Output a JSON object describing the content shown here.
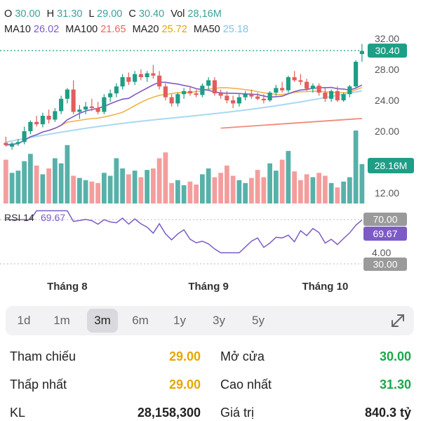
{
  "ohlc": {
    "o_label": "O",
    "o": "30.00",
    "h_label": "H",
    "h": "31.30",
    "l_label": "L",
    "l": "29.00",
    "c_label": "C",
    "c": "30.40",
    "vol_label": "Vol",
    "vol": "28,16M"
  },
  "ma": {
    "ma10_label": "MA10",
    "ma10": "26.02",
    "ma100_label": "MA100",
    "ma100": "21.65",
    "ma20_label": "MA20",
    "ma20": "25.72",
    "ma50_label": "MA50",
    "ma50": "25.18"
  },
  "colors": {
    "up": "#3aa39a",
    "down": "#f28c8c",
    "up_solid": "#1e9e86",
    "down_solid": "#e35d5d",
    "ma10": "#7d5bc6",
    "ma20": "#f0b44c",
    "ma50": "#a9d8f2",
    "ma100": "#f08a7a",
    "rsi": "#7d5bc6",
    "yellow": "#e6a700",
    "green": "#1aa84a"
  },
  "badges": {
    "price": "30.40",
    "volume": "28.16M",
    "rsi_upper": "70.00",
    "rsi_value": "69.67",
    "rsi_lower": "30.00"
  },
  "rsi": {
    "label": "RSI 14",
    "value": "69.67"
  },
  "tabs": [
    "1d",
    "1m",
    "3m",
    "6m",
    "1y",
    "3y",
    "5y"
  ],
  "active_tab": "3m",
  "stats": {
    "ref_label": "Tham chiếu",
    "ref_value": "29.00",
    "open_label": "Mở cửa",
    "open_value": "30.00",
    "low_label": "Thấp nhất",
    "low_value": "29.00",
    "high_label": "Cao nhất",
    "high_value": "31.30",
    "kl_label": "KL",
    "kl_value": "28,158,300",
    "value_label": "Giá trị",
    "value_value": "840.3 tỷ"
  },
  "chart_data": {
    "type": "candlestick",
    "price_axis": {
      "ticks": [
        32,
        28,
        24,
        20,
        12
      ]
    },
    "rsi_axis": {
      "ticks": [
        70,
        30
      ],
      "mid_label": "4.00"
    },
    "x_tick_labels": [
      "Tháng 8",
      "Tháng 9",
      "Tháng 10"
    ],
    "x_tick_index": [
      10,
      33,
      52
    ],
    "candles": [
      {
        "o": 18.5,
        "h": 19.3,
        "l": 18.0,
        "c": 18.2
      },
      {
        "o": 18.0,
        "h": 18.6,
        "l": 17.6,
        "c": 18.4
      },
      {
        "o": 18.4,
        "h": 19.0,
        "l": 18.1,
        "c": 18.6
      },
      {
        "o": 18.6,
        "h": 20.6,
        "l": 18.3,
        "c": 20.0
      },
      {
        "o": 20.0,
        "h": 21.4,
        "l": 19.6,
        "c": 21.2
      },
      {
        "o": 21.2,
        "h": 22.0,
        "l": 20.6,
        "c": 20.9
      },
      {
        "o": 20.9,
        "h": 22.4,
        "l": 20.5,
        "c": 22.0
      },
      {
        "o": 22.0,
        "h": 22.8,
        "l": 21.0,
        "c": 21.5
      },
      {
        "o": 21.5,
        "h": 23.0,
        "l": 21.2,
        "c": 22.6
      },
      {
        "o": 22.6,
        "h": 24.6,
        "l": 22.2,
        "c": 24.2
      },
      {
        "o": 24.2,
        "h": 25.6,
        "l": 23.6,
        "c": 25.4
      },
      {
        "o": 25.4,
        "h": 26.6,
        "l": 22.2,
        "c": 22.5
      },
      {
        "o": 22.5,
        "h": 23.4,
        "l": 21.6,
        "c": 22.8
      },
      {
        "o": 22.8,
        "h": 23.8,
        "l": 22.2,
        "c": 23.2
      },
      {
        "o": 23.2,
        "h": 24.2,
        "l": 22.6,
        "c": 23.0
      },
      {
        "o": 23.0,
        "h": 23.8,
        "l": 22.2,
        "c": 22.5
      },
      {
        "o": 22.5,
        "h": 24.8,
        "l": 22.2,
        "c": 24.4
      },
      {
        "o": 24.4,
        "h": 25.4,
        "l": 23.8,
        "c": 24.9
      },
      {
        "o": 24.9,
        "h": 26.2,
        "l": 24.4,
        "c": 25.8
      },
      {
        "o": 25.8,
        "h": 27.4,
        "l": 25.4,
        "c": 27.0
      },
      {
        "o": 27.0,
        "h": 27.6,
        "l": 26.0,
        "c": 26.4
      },
      {
        "o": 26.4,
        "h": 27.8,
        "l": 26.0,
        "c": 27.4
      },
      {
        "o": 27.4,
        "h": 28.0,
        "l": 26.6,
        "c": 27.0
      },
      {
        "o": 27.0,
        "h": 27.8,
        "l": 26.4,
        "c": 27.5
      },
      {
        "o": 27.5,
        "h": 28.6,
        "l": 26.8,
        "c": 27.2
      },
      {
        "o": 27.2,
        "h": 27.8,
        "l": 25.4,
        "c": 25.8
      },
      {
        "o": 25.8,
        "h": 26.2,
        "l": 24.0,
        "c": 24.4
      },
      {
        "o": 24.4,
        "h": 24.8,
        "l": 23.2,
        "c": 23.6
      },
      {
        "o": 23.6,
        "h": 25.0,
        "l": 23.2,
        "c": 24.8
      },
      {
        "o": 24.8,
        "h": 25.6,
        "l": 24.2,
        "c": 25.2
      },
      {
        "o": 25.2,
        "h": 25.8,
        "l": 24.6,
        "c": 24.9
      },
      {
        "o": 24.9,
        "h": 25.4,
        "l": 24.4,
        "c": 24.7
      },
      {
        "o": 24.7,
        "h": 26.2,
        "l": 24.4,
        "c": 25.9
      },
      {
        "o": 25.9,
        "h": 27.0,
        "l": 25.4,
        "c": 26.6
      },
      {
        "o": 26.6,
        "h": 27.0,
        "l": 24.6,
        "c": 24.9
      },
      {
        "o": 24.9,
        "h": 25.4,
        "l": 24.2,
        "c": 24.6
      },
      {
        "o": 24.6,
        "h": 25.2,
        "l": 23.6,
        "c": 24.0
      },
      {
        "o": 24.0,
        "h": 24.6,
        "l": 23.0,
        "c": 23.6
      },
      {
        "o": 23.6,
        "h": 24.8,
        "l": 23.2,
        "c": 24.4
      },
      {
        "o": 24.4,
        "h": 25.2,
        "l": 24.0,
        "c": 24.8
      },
      {
        "o": 24.8,
        "h": 25.4,
        "l": 24.2,
        "c": 24.5
      },
      {
        "o": 24.5,
        "h": 25.0,
        "l": 24.0,
        "c": 24.2
      },
      {
        "o": 24.2,
        "h": 24.8,
        "l": 23.6,
        "c": 24.0
      },
      {
        "o": 24.0,
        "h": 25.2,
        "l": 23.8,
        "c": 25.0
      },
      {
        "o": 25.0,
        "h": 26.0,
        "l": 24.6,
        "c": 25.6
      },
      {
        "o": 25.6,
        "h": 26.4,
        "l": 25.0,
        "c": 25.3
      },
      {
        "o": 25.3,
        "h": 27.2,
        "l": 25.0,
        "c": 27.0
      },
      {
        "o": 27.0,
        "h": 27.8,
        "l": 26.4,
        "c": 26.6
      },
      {
        "o": 26.6,
        "h": 27.4,
        "l": 26.0,
        "c": 26.4
      },
      {
        "o": 26.4,
        "h": 26.8,
        "l": 25.2,
        "c": 25.5
      },
      {
        "o": 25.5,
        "h": 26.2,
        "l": 25.0,
        "c": 25.9
      },
      {
        "o": 25.9,
        "h": 26.2,
        "l": 24.6,
        "c": 25.0
      },
      {
        "o": 25.0,
        "h": 25.6,
        "l": 23.8,
        "c": 24.2
      },
      {
        "o": 24.2,
        "h": 25.4,
        "l": 23.8,
        "c": 25.2
      },
      {
        "o": 25.2,
        "h": 25.8,
        "l": 23.8,
        "c": 24.0
      },
      {
        "o": 24.0,
        "h": 25.0,
        "l": 23.8,
        "c": 24.8
      },
      {
        "o": 24.8,
        "h": 26.0,
        "l": 24.4,
        "c": 25.8
      },
      {
        "o": 25.8,
        "h": 29.2,
        "l": 25.6,
        "c": 29.0
      },
      {
        "o": 30.0,
        "h": 31.3,
        "l": 29.0,
        "c": 30.4
      }
    ],
    "volume": [
      0.6,
      0.42,
      0.45,
      0.58,
      0.68,
      0.52,
      0.4,
      0.48,
      0.62,
      0.55,
      0.8,
      0.38,
      0.35,
      0.32,
      0.3,
      0.28,
      0.42,
      0.38,
      0.62,
      0.48,
      0.4,
      0.45,
      0.36,
      0.46,
      0.48,
      0.62,
      0.7,
      0.28,
      0.32,
      0.25,
      0.3,
      0.26,
      0.4,
      0.48,
      0.36,
      0.42,
      0.52,
      0.38,
      0.32,
      0.28,
      0.35,
      0.46,
      0.36,
      0.55,
      0.45,
      0.6,
      0.72,
      0.44,
      0.32,
      0.4,
      0.36,
      0.42,
      0.38,
      0.28,
      0.22,
      0.3,
      0.36,
      1.0,
      0.54
    ]
  }
}
